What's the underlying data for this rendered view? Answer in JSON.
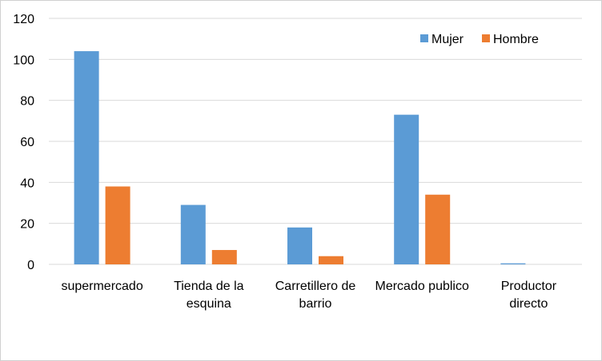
{
  "chart_data": {
    "type": "bar",
    "title": "",
    "xlabel": "",
    "ylabel": "",
    "ylim": [
      0,
      120
    ],
    "yticks": [
      0,
      20,
      40,
      60,
      80,
      100,
      120
    ],
    "grid": true,
    "legend_position": "top-right",
    "categories": [
      [
        "supermercado"
      ],
      [
        "Tienda de la",
        "esquina"
      ],
      [
        "Carretillero de",
        "barrio"
      ],
      [
        "Mercado publico"
      ],
      [
        "Productor",
        "directo"
      ]
    ],
    "series": [
      {
        "name": "Mujer",
        "color": "#5B9BD5",
        "values": [
          104,
          29,
          18,
          73,
          0.5
        ]
      },
      {
        "name": "Hombre",
        "color": "#ED7D31",
        "values": [
          38,
          7,
          4,
          34,
          0
        ]
      }
    ]
  }
}
